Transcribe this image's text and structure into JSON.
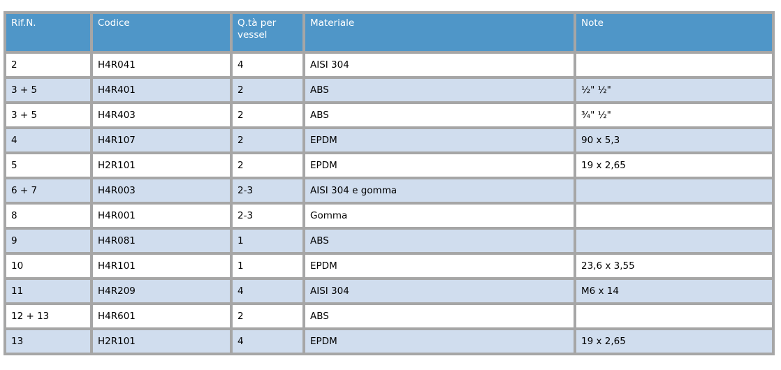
{
  "table": {
    "columns": [
      {
        "label": "Rif.N."
      },
      {
        "label": "Codice"
      },
      {
        "label": "Q.tà per vessel"
      },
      {
        "label": "Materiale"
      },
      {
        "label": "Note"
      }
    ],
    "rows": [
      [
        "2",
        "H4R041",
        "4",
        "AISI 304",
        ""
      ],
      [
        "3 + 5",
        "H4R401",
        "2",
        "ABS",
        "½\" ½\""
      ],
      [
        "3 + 5",
        "H4R403",
        "2",
        "ABS",
        "¾\" ½\""
      ],
      [
        "4",
        "H4R107",
        "2",
        "EPDM",
        "90 x 5,3"
      ],
      [
        "5",
        "H2R101",
        "2",
        "EPDM",
        "19 x 2,65"
      ],
      [
        "6 + 7",
        "H4R003",
        "2-3",
        "AISI 304 e gomma",
        ""
      ],
      [
        "8",
        "H4R001",
        "2-3",
        "Gomma",
        ""
      ],
      [
        "9",
        "H4R081",
        "1",
        "ABS",
        ""
      ],
      [
        "10",
        "H4R101",
        "1",
        "EPDM",
        "23,6 x 3,55"
      ],
      [
        "11",
        "H4R209",
        "4",
        "AISI 304",
        "M6 x 14"
      ],
      [
        "12 + 13",
        "H4R601",
        "2",
        "ABS",
        ""
      ],
      [
        "13",
        "H2R101",
        "4",
        "EPDM",
        "19 x 2,65"
      ]
    ],
    "colors": {
      "header_bg": "#4f96c8",
      "header_text": "#ffffff",
      "row_bg": "#ffffff",
      "row_alt_bg": "#d0ddee",
      "border": "#a6a6a6",
      "body_text": "#000000"
    }
  }
}
